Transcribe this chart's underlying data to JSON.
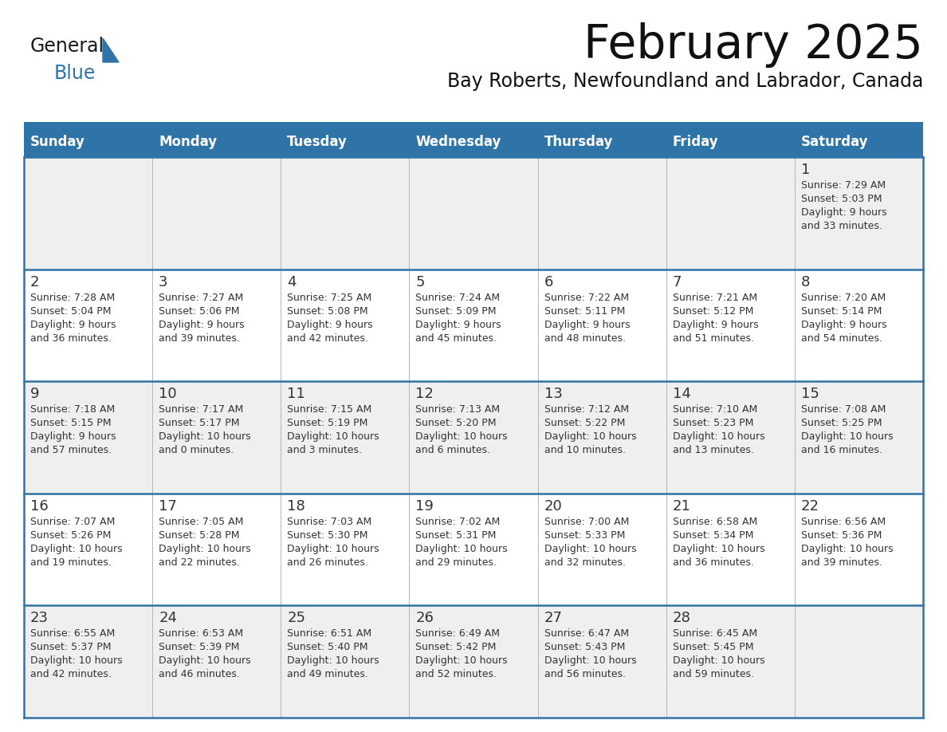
{
  "title": "February 2025",
  "subtitle": "Bay Roberts, Newfoundland and Labrador, Canada",
  "header_bg_color": "#2E74A8",
  "header_text_color": "#FFFFFF",
  "cell_bg_white": "#FFFFFF",
  "cell_bg_gray": "#EFEFEF",
  "border_color": "#2E74A8",
  "thin_border_color": "#AAAAAA",
  "day_names": [
    "Sunday",
    "Monday",
    "Tuesday",
    "Wednesday",
    "Thursday",
    "Friday",
    "Saturday"
  ],
  "title_color": "#111111",
  "subtitle_color": "#111111",
  "cell_text_color": "#333333",
  "day_num_color": "#333333",
  "days": [
    {
      "date": 1,
      "col": 6,
      "row": 0,
      "sunrise": "7:29 AM",
      "sunset": "5:03 PM",
      "daylight_h": "9 hours",
      "daylight_m": "and 33 minutes."
    },
    {
      "date": 2,
      "col": 0,
      "row": 1,
      "sunrise": "7:28 AM",
      "sunset": "5:04 PM",
      "daylight_h": "9 hours",
      "daylight_m": "and 36 minutes."
    },
    {
      "date": 3,
      "col": 1,
      "row": 1,
      "sunrise": "7:27 AM",
      "sunset": "5:06 PM",
      "daylight_h": "9 hours",
      "daylight_m": "and 39 minutes."
    },
    {
      "date": 4,
      "col": 2,
      "row": 1,
      "sunrise": "7:25 AM",
      "sunset": "5:08 PM",
      "daylight_h": "9 hours",
      "daylight_m": "and 42 minutes."
    },
    {
      "date": 5,
      "col": 3,
      "row": 1,
      "sunrise": "7:24 AM",
      "sunset": "5:09 PM",
      "daylight_h": "9 hours",
      "daylight_m": "and 45 minutes."
    },
    {
      "date": 6,
      "col": 4,
      "row": 1,
      "sunrise": "7:22 AM",
      "sunset": "5:11 PM",
      "daylight_h": "9 hours",
      "daylight_m": "and 48 minutes."
    },
    {
      "date": 7,
      "col": 5,
      "row": 1,
      "sunrise": "7:21 AM",
      "sunset": "5:12 PM",
      "daylight_h": "9 hours",
      "daylight_m": "and 51 minutes."
    },
    {
      "date": 8,
      "col": 6,
      "row": 1,
      "sunrise": "7:20 AM",
      "sunset": "5:14 PM",
      "daylight_h": "9 hours",
      "daylight_m": "and 54 minutes."
    },
    {
      "date": 9,
      "col": 0,
      "row": 2,
      "sunrise": "7:18 AM",
      "sunset": "5:15 PM",
      "daylight_h": "9 hours",
      "daylight_m": "and 57 minutes."
    },
    {
      "date": 10,
      "col": 1,
      "row": 2,
      "sunrise": "7:17 AM",
      "sunset": "5:17 PM",
      "daylight_h": "10 hours",
      "daylight_m": "and 0 minutes."
    },
    {
      "date": 11,
      "col": 2,
      "row": 2,
      "sunrise": "7:15 AM",
      "sunset": "5:19 PM",
      "daylight_h": "10 hours",
      "daylight_m": "and 3 minutes."
    },
    {
      "date": 12,
      "col": 3,
      "row": 2,
      "sunrise": "7:13 AM",
      "sunset": "5:20 PM",
      "daylight_h": "10 hours",
      "daylight_m": "and 6 minutes."
    },
    {
      "date": 13,
      "col": 4,
      "row": 2,
      "sunrise": "7:12 AM",
      "sunset": "5:22 PM",
      "daylight_h": "10 hours",
      "daylight_m": "and 10 minutes."
    },
    {
      "date": 14,
      "col": 5,
      "row": 2,
      "sunrise": "7:10 AM",
      "sunset": "5:23 PM",
      "daylight_h": "10 hours",
      "daylight_m": "and 13 minutes."
    },
    {
      "date": 15,
      "col": 6,
      "row": 2,
      "sunrise": "7:08 AM",
      "sunset": "5:25 PM",
      "daylight_h": "10 hours",
      "daylight_m": "and 16 minutes."
    },
    {
      "date": 16,
      "col": 0,
      "row": 3,
      "sunrise": "7:07 AM",
      "sunset": "5:26 PM",
      "daylight_h": "10 hours",
      "daylight_m": "and 19 minutes."
    },
    {
      "date": 17,
      "col": 1,
      "row": 3,
      "sunrise": "7:05 AM",
      "sunset": "5:28 PM",
      "daylight_h": "10 hours",
      "daylight_m": "and 22 minutes."
    },
    {
      "date": 18,
      "col": 2,
      "row": 3,
      "sunrise": "7:03 AM",
      "sunset": "5:30 PM",
      "daylight_h": "10 hours",
      "daylight_m": "and 26 minutes."
    },
    {
      "date": 19,
      "col": 3,
      "row": 3,
      "sunrise": "7:02 AM",
      "sunset": "5:31 PM",
      "daylight_h": "10 hours",
      "daylight_m": "and 29 minutes."
    },
    {
      "date": 20,
      "col": 4,
      "row": 3,
      "sunrise": "7:00 AM",
      "sunset": "5:33 PM",
      "daylight_h": "10 hours",
      "daylight_m": "and 32 minutes."
    },
    {
      "date": 21,
      "col": 5,
      "row": 3,
      "sunrise": "6:58 AM",
      "sunset": "5:34 PM",
      "daylight_h": "10 hours",
      "daylight_m": "and 36 minutes."
    },
    {
      "date": 22,
      "col": 6,
      "row": 3,
      "sunrise": "6:56 AM",
      "sunset": "5:36 PM",
      "daylight_h": "10 hours",
      "daylight_m": "and 39 minutes."
    },
    {
      "date": 23,
      "col": 0,
      "row": 4,
      "sunrise": "6:55 AM",
      "sunset": "5:37 PM",
      "daylight_h": "10 hours",
      "daylight_m": "and 42 minutes."
    },
    {
      "date": 24,
      "col": 1,
      "row": 4,
      "sunrise": "6:53 AM",
      "sunset": "5:39 PM",
      "daylight_h": "10 hours",
      "daylight_m": "and 46 minutes."
    },
    {
      "date": 25,
      "col": 2,
      "row": 4,
      "sunrise": "6:51 AM",
      "sunset": "5:40 PM",
      "daylight_h": "10 hours",
      "daylight_m": "and 49 minutes."
    },
    {
      "date": 26,
      "col": 3,
      "row": 4,
      "sunrise": "6:49 AM",
      "sunset": "5:42 PM",
      "daylight_h": "10 hours",
      "daylight_m": "and 52 minutes."
    },
    {
      "date": 27,
      "col": 4,
      "row": 4,
      "sunrise": "6:47 AM",
      "sunset": "5:43 PM",
      "daylight_h": "10 hours",
      "daylight_m": "and 56 minutes."
    },
    {
      "date": 28,
      "col": 5,
      "row": 4,
      "sunrise": "6:45 AM",
      "sunset": "5:45 PM",
      "daylight_h": "10 hours",
      "daylight_m": "and 59 minutes."
    }
  ],
  "logo_text_general": "General",
  "logo_text_blue": "Blue",
  "logo_color_general": "#1a1a1a",
  "logo_color_blue": "#2E74A8",
  "logo_triangle_color": "#2E74A8",
  "figwidth": 11.88,
  "figheight": 9.18,
  "dpi": 100
}
